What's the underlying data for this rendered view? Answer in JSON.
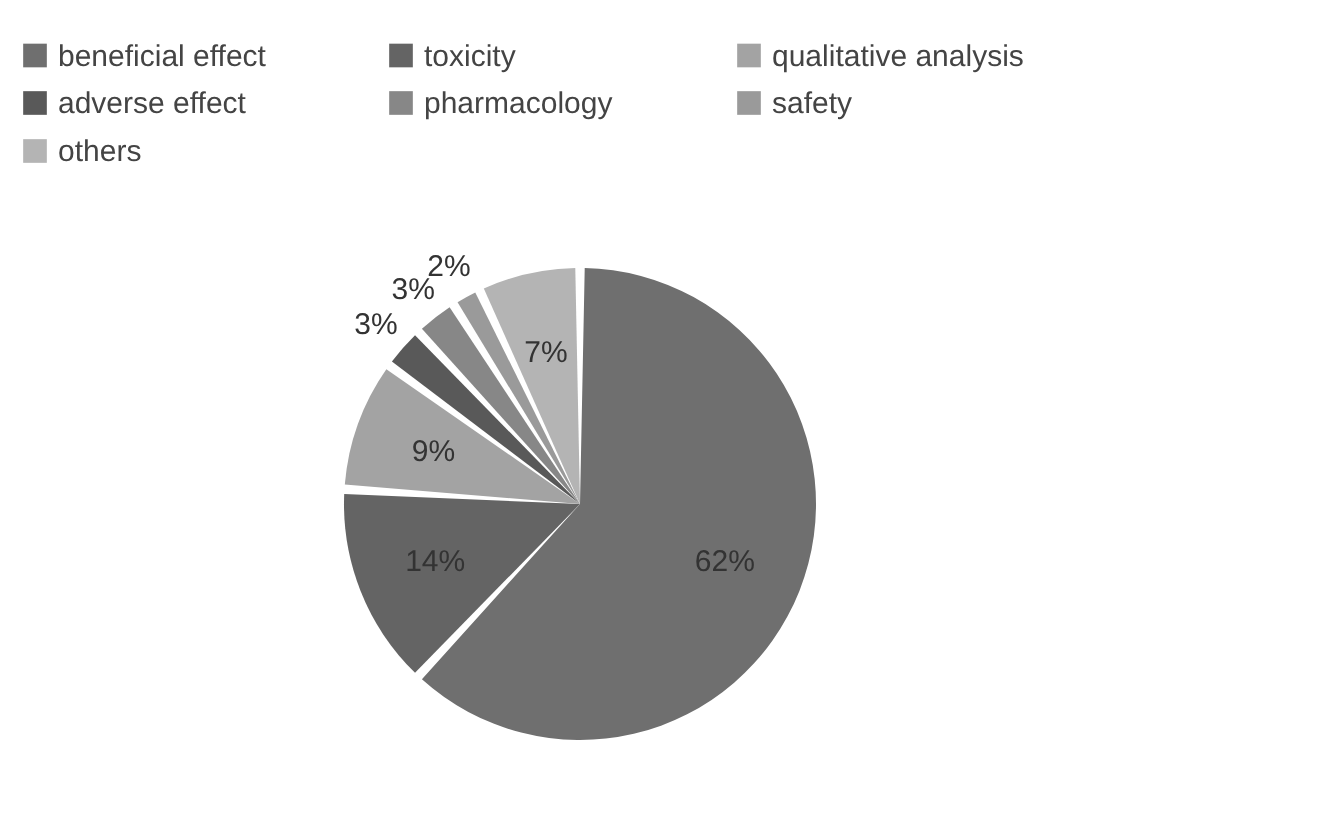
{
  "chart_data": {
    "type": "pie",
    "categories": [
      "beneficial effect",
      "toxicity",
      "qualitative  analysis",
      "adverse effect",
      "pharmacology",
      "safety",
      "others"
    ],
    "values": [
      62,
      14,
      9,
      3,
      3,
      2,
      7
    ],
    "value_labels": [
      "62%",
      "14%",
      "9%",
      "3%",
      "3%",
      "2%",
      "7%"
    ],
    "colors": [
      "#6f6f6f",
      "#646464",
      "#a3a3a3",
      "#595959",
      "#878787",
      "#9a9a9a",
      "#b4b4b4"
    ],
    "legend": "top left"
  }
}
